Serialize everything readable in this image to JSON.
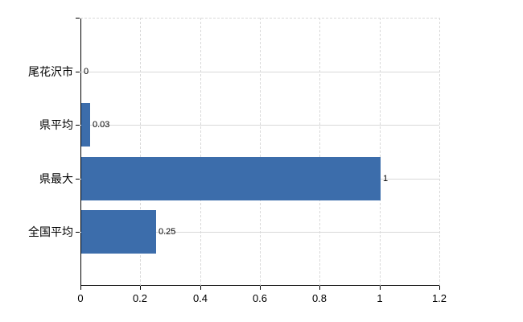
{
  "chart_data": {
    "type": "bar",
    "orientation": "horizontal",
    "title": "",
    "xlabel": "",
    "ylabel": "",
    "categories": [
      "尾花沢市",
      "県平均",
      "県最大",
      "全国平均"
    ],
    "values": [
      0,
      0.03,
      1,
      0.25
    ],
    "value_labels": [
      "0",
      "0.03",
      "1",
      "0.25"
    ],
    "x_ticks": [
      0,
      0.2,
      0.4,
      0.6,
      0.8,
      1,
      1.2
    ],
    "x_tick_labels": [
      "0",
      "0.2",
      "0.4",
      "0.6",
      "0.8",
      "1",
      "1.2"
    ],
    "xlim": [
      0,
      1.2
    ],
    "grid": true,
    "legend": false,
    "colors": {
      "bar": "#3c6dab",
      "axis": "#000000",
      "grid": "#d9d9d9",
      "text": "#000000"
    }
  }
}
